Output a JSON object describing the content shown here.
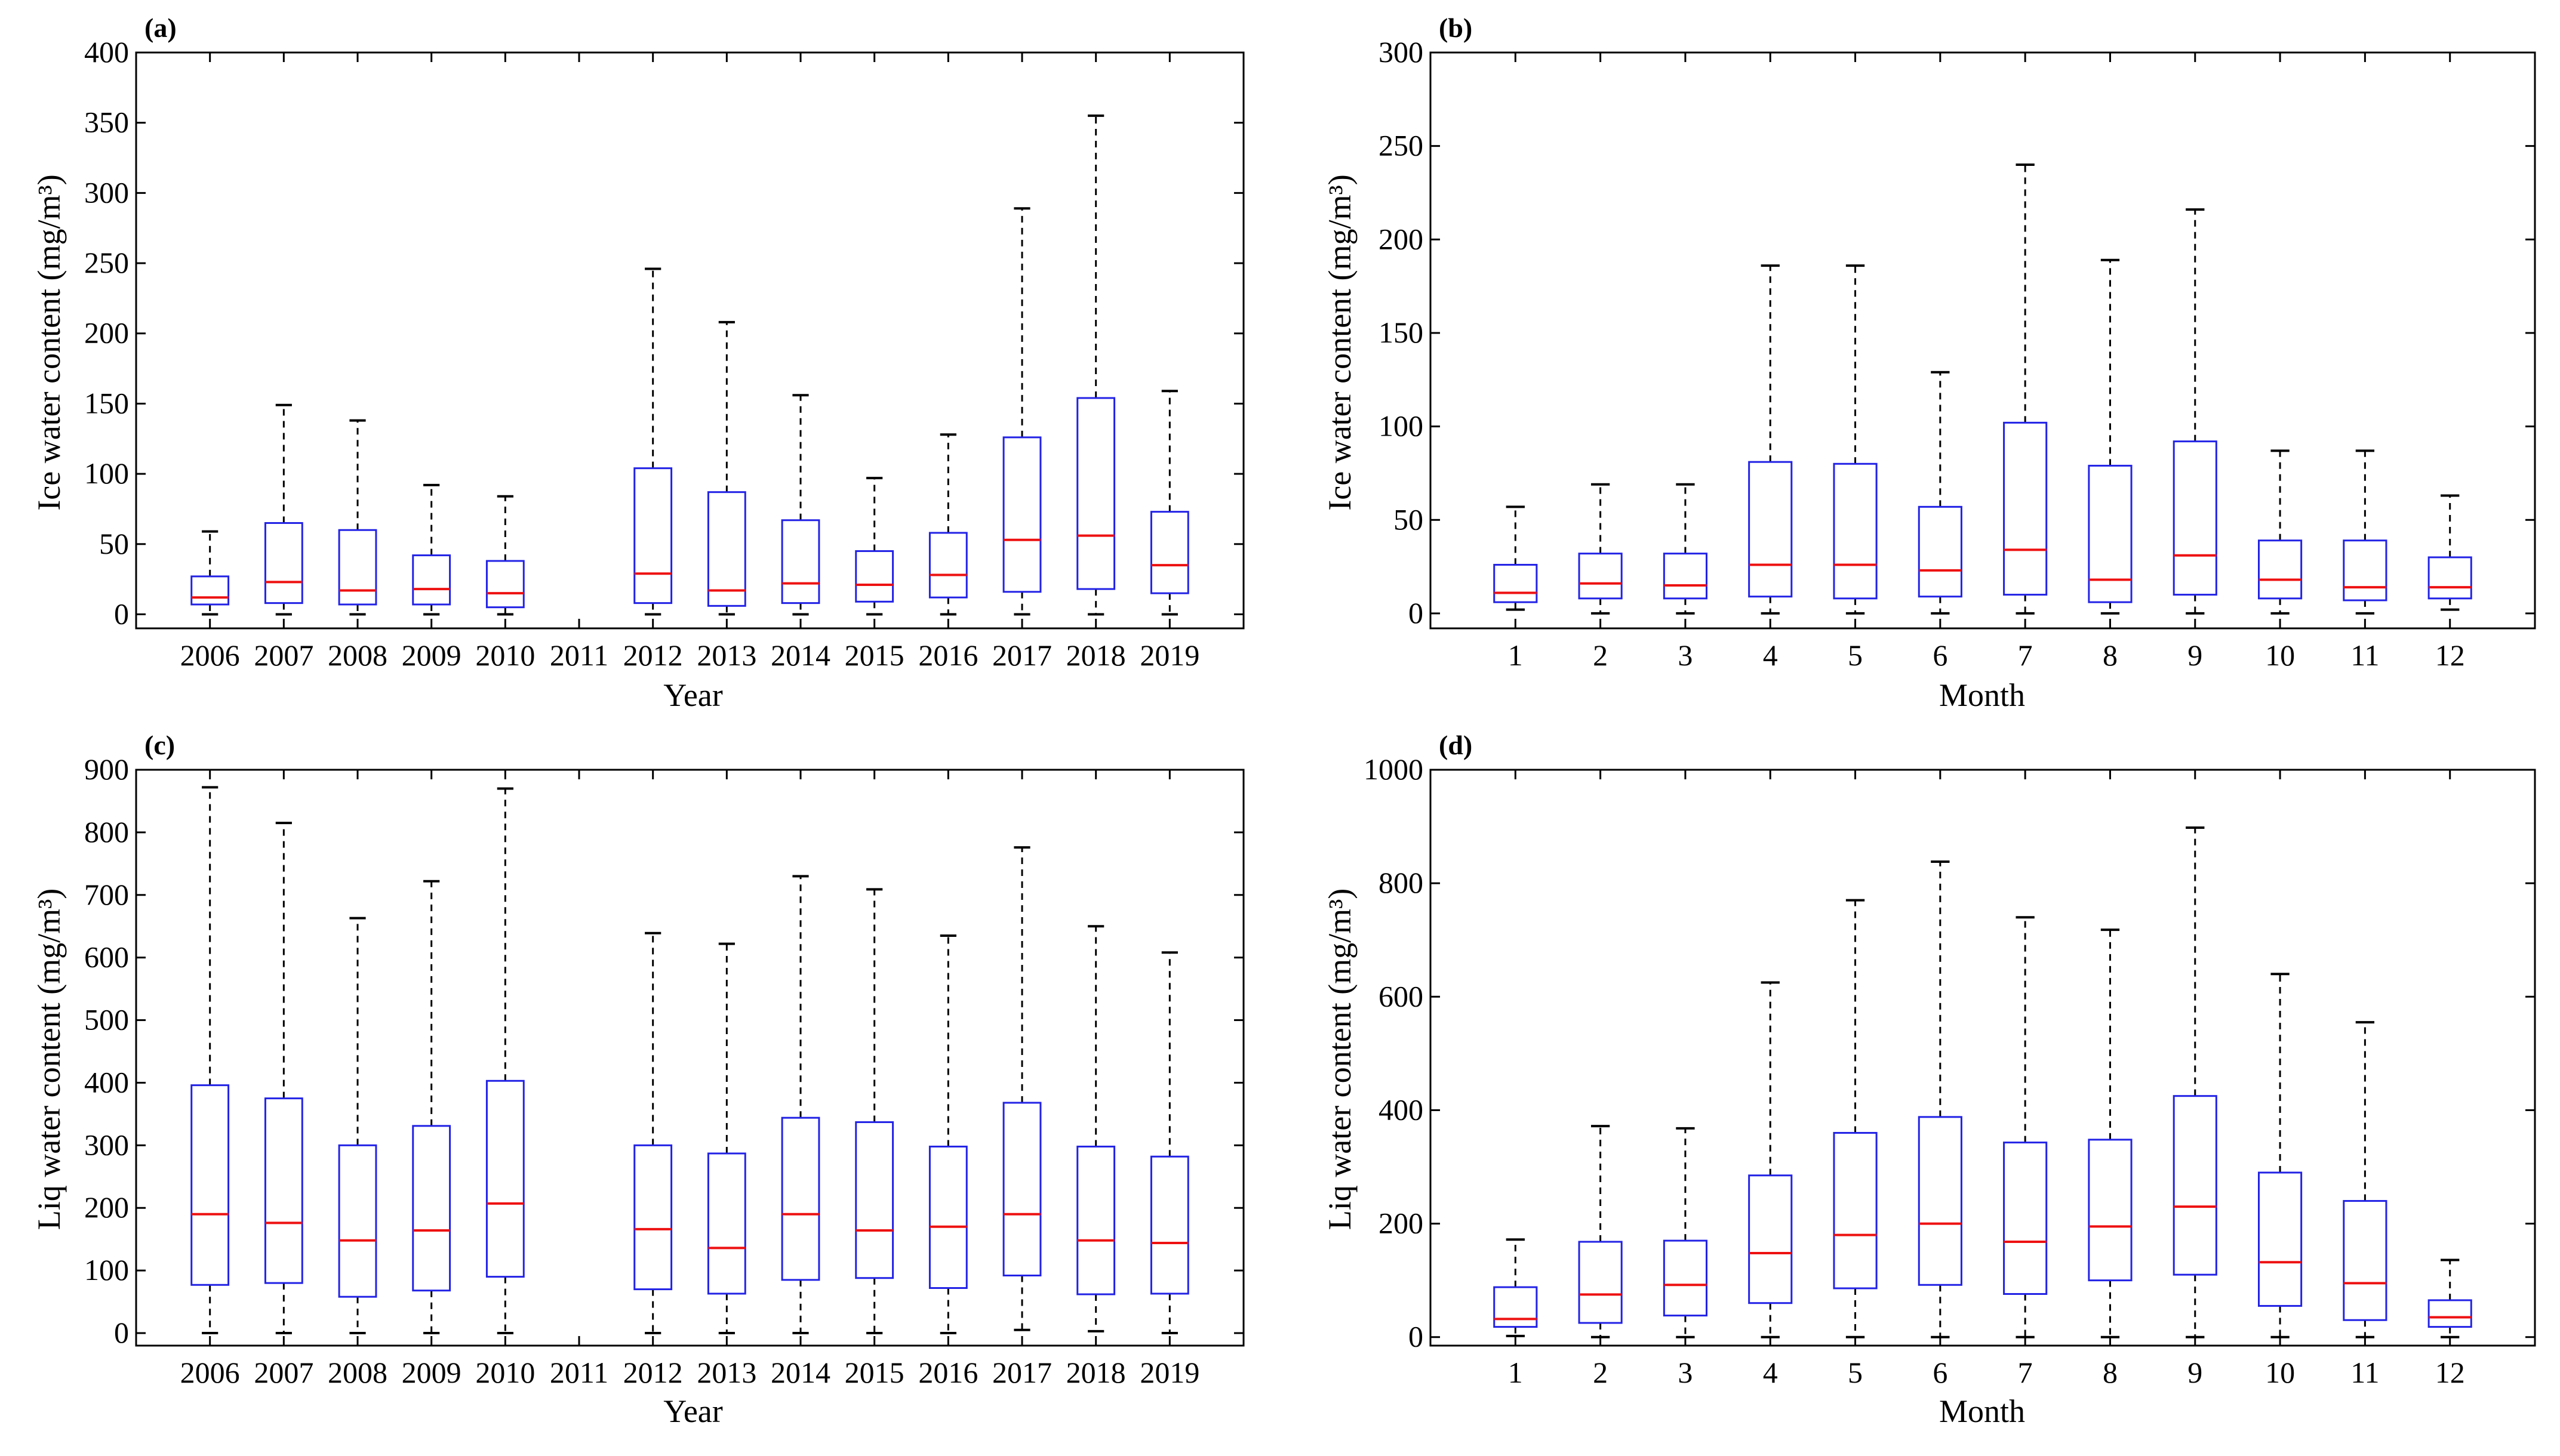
{
  "chart_data": [
    {
      "id": "a",
      "type": "box",
      "panel_label": "(a)",
      "xlabel": "Year",
      "ylabel": "Ice water content (mg/m³)",
      "ylim": [
        -10,
        400
      ],
      "yticks": [
        0,
        50,
        100,
        150,
        200,
        250,
        300,
        350,
        400
      ],
      "categories": [
        "2006",
        "2007",
        "2008",
        "2009",
        "2010",
        "2011",
        "2012",
        "2013",
        "2014",
        "2015",
        "2016",
        "2017",
        "2018",
        "2019"
      ],
      "boxes": [
        {
          "min": 0,
          "q1": 7,
          "median": 12,
          "q3": 27,
          "max": 59
        },
        {
          "min": 0,
          "q1": 8,
          "median": 23,
          "q3": 65,
          "max": 149
        },
        {
          "min": 0,
          "q1": 7,
          "median": 17,
          "q3": 60,
          "max": 138
        },
        {
          "min": 0,
          "q1": 7,
          "median": 18,
          "q3": 42,
          "max": 92
        },
        {
          "min": 0,
          "q1": 5,
          "median": 15,
          "q3": 38,
          "max": 84
        },
        null,
        {
          "min": 0,
          "q1": 8,
          "median": 29,
          "q3": 104,
          "max": 246
        },
        {
          "min": 0,
          "q1": 6,
          "median": 17,
          "q3": 87,
          "max": 208
        },
        {
          "min": 0,
          "q1": 8,
          "median": 22,
          "q3": 67,
          "max": 156
        },
        {
          "min": 0,
          "q1": 9,
          "median": 21,
          "q3": 45,
          "max": 97
        },
        {
          "min": 0,
          "q1": 12,
          "median": 28,
          "q3": 58,
          "max": 128
        },
        {
          "min": 0,
          "q1": 16,
          "median": 53,
          "q3": 126,
          "max": 289
        },
        {
          "min": 0,
          "q1": 18,
          "median": 56,
          "q3": 154,
          "max": 355
        },
        {
          "min": 0,
          "q1": 15,
          "median": 35,
          "q3": 73,
          "max": 159
        }
      ]
    },
    {
      "id": "b",
      "type": "box",
      "panel_label": "(b)",
      "xlabel": "Month",
      "ylabel": "Ice water content (mg/m³)",
      "ylim": [
        -8,
        300
      ],
      "yticks": [
        0,
        50,
        100,
        150,
        200,
        250,
        300
      ],
      "categories": [
        "1",
        "2",
        "3",
        "4",
        "5",
        "6",
        "7",
        "8",
        "9",
        "10",
        "11",
        "12"
      ],
      "boxes": [
        {
          "min": 2,
          "q1": 6,
          "median": 11,
          "q3": 26,
          "max": 57
        },
        {
          "min": 0,
          "q1": 8,
          "median": 16,
          "q3": 32,
          "max": 69
        },
        {
          "min": 0,
          "q1": 8,
          "median": 15,
          "q3": 32,
          "max": 69
        },
        {
          "min": 0,
          "q1": 9,
          "median": 26,
          "q3": 81,
          "max": 186
        },
        {
          "min": 0,
          "q1": 8,
          "median": 26,
          "q3": 80,
          "max": 186
        },
        {
          "min": 0,
          "q1": 9,
          "median": 23,
          "q3": 57,
          "max": 129
        },
        {
          "min": 0,
          "q1": 10,
          "median": 34,
          "q3": 102,
          "max": 240
        },
        {
          "min": 0,
          "q1": 6,
          "median": 18,
          "q3": 79,
          "max": 189
        },
        {
          "min": 0,
          "q1": 10,
          "median": 31,
          "q3": 92,
          "max": 216
        },
        {
          "min": 0,
          "q1": 8,
          "median": 18,
          "q3": 39,
          "max": 87
        },
        {
          "min": 0,
          "q1": 7,
          "median": 14,
          "q3": 39,
          "max": 87
        },
        {
          "min": 2,
          "q1": 8,
          "median": 14,
          "q3": 30,
          "max": 63
        }
      ]
    },
    {
      "id": "c",
      "type": "box",
      "panel_label": "(c)",
      "xlabel": "Year",
      "ylabel": "Liq water content (mg/m³)",
      "ylim": [
        -20,
        900
      ],
      "yticks": [
        0,
        100,
        200,
        300,
        400,
        500,
        600,
        700,
        800,
        900
      ],
      "categories": [
        "2006",
        "2007",
        "2008",
        "2009",
        "2010",
        "2011",
        "2012",
        "2013",
        "2014",
        "2015",
        "2016",
        "2017",
        "2018",
        "2019"
      ],
      "boxes": [
        {
          "min": 0,
          "q1": 77,
          "median": 190,
          "q3": 396,
          "max": 872
        },
        {
          "min": 0,
          "q1": 80,
          "median": 176,
          "q3": 375,
          "max": 815
        },
        {
          "min": 0,
          "q1": 58,
          "median": 148,
          "q3": 300,
          "max": 663
        },
        {
          "min": 0,
          "q1": 68,
          "median": 164,
          "q3": 331,
          "max": 722
        },
        {
          "min": 0,
          "q1": 90,
          "median": 207,
          "q3": 403,
          "max": 870
        },
        null,
        {
          "min": 0,
          "q1": 70,
          "median": 166,
          "q3": 300,
          "max": 639
        },
        {
          "min": 0,
          "q1": 63,
          "median": 136,
          "q3": 287,
          "max": 622
        },
        {
          "min": 0,
          "q1": 85,
          "median": 190,
          "q3": 344,
          "max": 730
        },
        {
          "min": 0,
          "q1": 88,
          "median": 164,
          "q3": 337,
          "max": 709
        },
        {
          "min": 0,
          "q1": 72,
          "median": 170,
          "q3": 298,
          "max": 635
        },
        {
          "min": 5,
          "q1": 92,
          "median": 190,
          "q3": 368,
          "max": 776
        },
        {
          "min": 3,
          "q1": 62,
          "median": 148,
          "q3": 298,
          "max": 650
        },
        {
          "min": 0,
          "q1": 63,
          "median": 144,
          "q3": 282,
          "max": 608
        }
      ]
    },
    {
      "id": "d",
      "type": "box",
      "panel_label": "(d)",
      "xlabel": "Month",
      "ylabel": "Liq water content (mg/m³)",
      "ylim": [
        -15,
        1000
      ],
      "yticks": [
        0,
        200,
        400,
        600,
        800,
        1000
      ],
      "categories": [
        "1",
        "2",
        "3",
        "4",
        "5",
        "6",
        "7",
        "8",
        "9",
        "10",
        "11",
        "12"
      ],
      "boxes": [
        {
          "min": 2,
          "q1": 18,
          "median": 32,
          "q3": 88,
          "max": 172
        },
        {
          "min": 0,
          "q1": 25,
          "median": 75,
          "q3": 168,
          "max": 372
        },
        {
          "min": 0,
          "q1": 38,
          "median": 92,
          "q3": 170,
          "max": 368
        },
        {
          "min": 0,
          "q1": 60,
          "median": 148,
          "q3": 285,
          "max": 625
        },
        {
          "min": 0,
          "q1": 86,
          "median": 180,
          "q3": 360,
          "max": 770
        },
        {
          "min": 0,
          "q1": 92,
          "median": 200,
          "q3": 388,
          "max": 838
        },
        {
          "min": 0,
          "q1": 76,
          "median": 168,
          "q3": 343,
          "max": 740
        },
        {
          "min": 0,
          "q1": 100,
          "median": 195,
          "q3": 348,
          "max": 718
        },
        {
          "min": 0,
          "q1": 110,
          "median": 230,
          "q3": 425,
          "max": 898
        },
        {
          "min": 0,
          "q1": 55,
          "median": 132,
          "q3": 290,
          "max": 640
        },
        {
          "min": 0,
          "q1": 30,
          "median": 95,
          "q3": 240,
          "max": 555
        },
        {
          "min": 0,
          "q1": 18,
          "median": 35,
          "q3": 65,
          "max": 136
        }
      ]
    }
  ],
  "colors": {
    "box": "#2222e6",
    "median": "#ee1111",
    "whisker": "#000000",
    "axes": "#000000"
  }
}
